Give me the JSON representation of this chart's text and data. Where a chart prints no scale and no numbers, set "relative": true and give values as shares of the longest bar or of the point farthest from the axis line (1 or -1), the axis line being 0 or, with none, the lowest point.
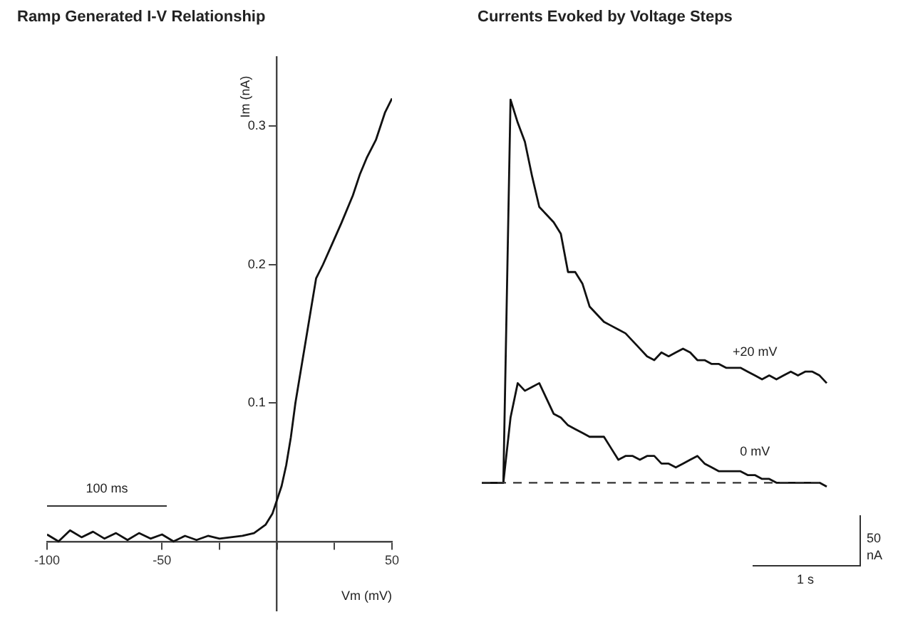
{
  "chart_data": [
    {
      "type": "line",
      "title": "Ramp Generated I-V Relationship",
      "xlabel": "Vm (mV)",
      "ylabel": "Im (nA)",
      "xlim": [
        -100,
        50
      ],
      "ylim": [
        -0.05,
        0.35
      ],
      "xticks": [
        -100,
        {
          "value": -50,
          "label": "-50"
        },
        {
          "value": -25,
          "label": null
        },
        {
          "value": 0,
          "label": null
        },
        {
          "value": 25,
          "label": null
        },
        50
      ],
      "yticks": [
        {
          "value": 0,
          "label": null
        },
        0.1,
        0.2,
        0.3
      ],
      "x": [
        -100,
        -95,
        -90,
        -85,
        -80,
        -75,
        -70,
        -65,
        -60,
        -55,
        -50,
        -45,
        -40,
        -35,
        -30,
        -25,
        -20,
        -15,
        -10,
        -5,
        -2,
        2,
        4,
        6,
        8,
        10,
        12,
        15,
        17,
        20,
        24,
        28,
        33,
        36,
        39,
        43,
        47,
        50
      ],
      "series": [
        {
          "color": "#111111",
          "values": [
            0.005,
            0.0,
            0.008,
            0.003,
            0.007,
            0.002,
            0.006,
            0.001,
            0.006,
            0.002,
            0.005,
            0.0,
            0.004,
            0.001,
            0.004,
            0.002,
            0.003,
            0.004,
            0.006,
            0.012,
            0.02,
            0.04,
            0.055,
            0.075,
            0.1,
            0.12,
            0.14,
            0.17,
            0.19,
            0.2,
            0.215,
            0.23,
            0.25,
            0.265,
            0.277,
            0.29,
            0.31,
            0.32
          ]
        }
      ],
      "annotations": [
        "100 ms"
      ],
      "grid": false,
      "legend": false,
      "marker": "none",
      "line_style": "solid"
    },
    {
      "type": "line",
      "title": "Currents Evoked by Voltage Steps",
      "relative": true,
      "categories": [
        null,
        null,
        null,
        null,
        null,
        null,
        null,
        null,
        null,
        null,
        null,
        null,
        null,
        null,
        null,
        null,
        null,
        null,
        null,
        null,
        null,
        null,
        null,
        null,
        null,
        null,
        null,
        null,
        null,
        null,
        null,
        null,
        null,
        null,
        null,
        null,
        null,
        null,
        null,
        null,
        null,
        null,
        null,
        null,
        null,
        null,
        null,
        null,
        null
      ],
      "series": [
        {
          "name": "+20 mV",
          "color": "#111111",
          "values": [
            0,
            0,
            0,
            0,
            1.0,
            0.94,
            0.89,
            0.8,
            0.72,
            0.7,
            0.68,
            0.65,
            0.55,
            0.55,
            0.52,
            0.46,
            0.44,
            0.42,
            0.41,
            0.4,
            0.39,
            0.37,
            0.35,
            0.33,
            0.32,
            0.34,
            0.33,
            0.34,
            0.35,
            0.34,
            0.32,
            0.32,
            0.31,
            0.31,
            0.3,
            0.3,
            0.3,
            0.29,
            0.28,
            0.27,
            0.28,
            0.27,
            0.28,
            0.29,
            0.28,
            0.29,
            0.29,
            0.28,
            0.26
          ]
        },
        {
          "name": "0 mV",
          "color": "#111111",
          "values": [
            0,
            0,
            0,
            0,
            0.17,
            0.26,
            0.24,
            0.25,
            0.26,
            0.22,
            0.18,
            0.17,
            0.15,
            0.14,
            0.13,
            0.12,
            0.12,
            0.12,
            0.09,
            0.06,
            0.07,
            0.07,
            0.06,
            0.07,
            0.07,
            0.05,
            0.05,
            0.04,
            0.05,
            0.06,
            0.07,
            0.05,
            0.04,
            0.03,
            0.03,
            0.03,
            0.03,
            0.02,
            0.02,
            0.01,
            0.01,
            0.0,
            0.0,
            0.0,
            0.0,
            0.0,
            0.0,
            0.0,
            -0.01
          ]
        }
      ],
      "ref_lines": [
        {
          "axis": "y",
          "value": 0,
          "label": null,
          "color": "#333333",
          "line_style": "dashed"
        }
      ],
      "annotations": [
        "50 nA",
        "1 s"
      ],
      "legend": false,
      "marker": "none",
      "line_style": "solid"
    }
  ]
}
